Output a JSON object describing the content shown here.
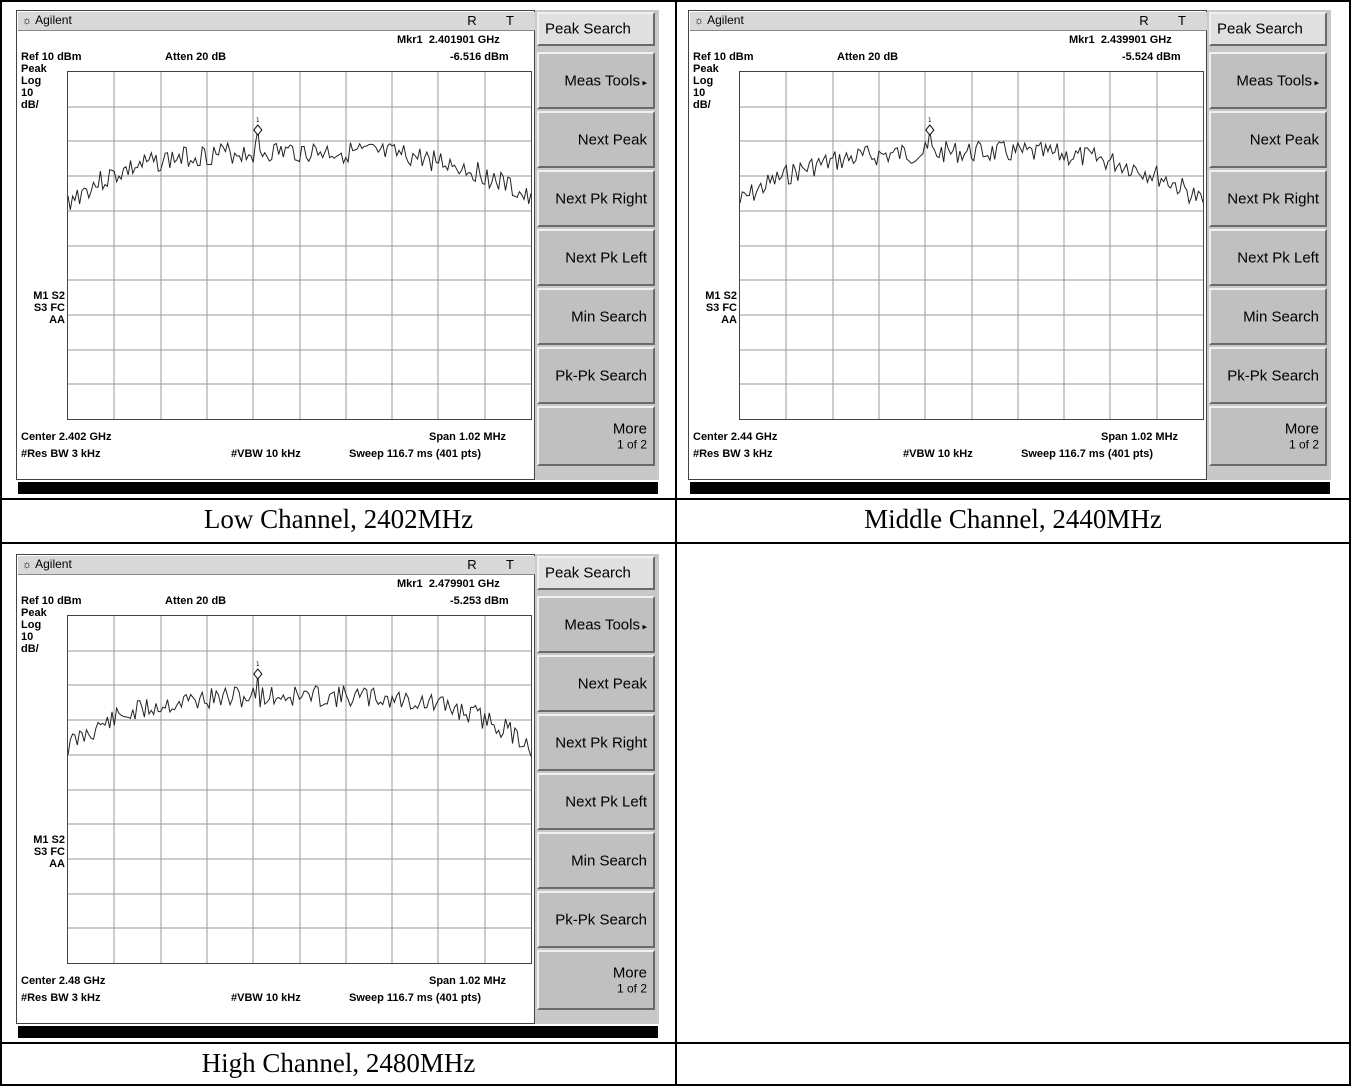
{
  "captions": [
    "Low Channel, 2402MHz",
    "Middle Channel, 2440MHz",
    "High Channel, 2480MHz"
  ],
  "analyzers": [
    {
      "brand": "Agilent",
      "rt": "R T",
      "marker_label": "Mkr1",
      "marker_freq": "2.401901 GHz",
      "marker_level": "-6.516 dBm",
      "ref": "Ref 10 dBm",
      "atten": "Atten 20 dB",
      "mode_lines": [
        "Peak",
        "Log",
        "10",
        "dB/"
      ],
      "status_lines": [
        "M1  S2",
        "S3  FC",
        "AA"
      ],
      "center": "Center 2.402 GHz",
      "span": "Span 1.02 MHz",
      "rbw": "#Res BW 3 kHz",
      "vbw": "#VBW 10 kHz",
      "sweep": "Sweep 116.7 ms (401 pts)",
      "softkeys": [
        "Peak Search",
        "Meas Tools",
        "Next Peak",
        "Next Pk Right",
        "Next Pk Left",
        "Min Search",
        "Pk-Pk Search",
        "More"
      ],
      "more_sub": "1 of 2",
      "trace_seed": 3
    },
    {
      "brand": "Agilent",
      "rt": "R T",
      "marker_label": "Mkr1",
      "marker_freq": "2.439901 GHz",
      "marker_level": "-5.524 dBm",
      "ref": "Ref 10 dBm",
      "atten": "Atten 20 dB",
      "mode_lines": [
        "Peak",
        "Log",
        "10",
        "dB/"
      ],
      "status_lines": [
        "M1  S2",
        "S3  FC",
        "AA"
      ],
      "center": "Center 2.44 GHz",
      "span": "Span 1.02 MHz",
      "rbw": "#Res BW 3 kHz",
      "vbw": "#VBW 10 kHz",
      "sweep": "Sweep 116.7 ms (401 pts)",
      "softkeys": [
        "Peak Search",
        "Meas Tools",
        "Next Peak",
        "Next Pk Right",
        "Next Pk Left",
        "Min Search",
        "Pk-Pk Search",
        "More"
      ],
      "more_sub": "1 of 2",
      "trace_seed": 7
    },
    {
      "brand": "Agilent",
      "rt": "R T",
      "marker_label": "Mkr1",
      "marker_freq": "2.479901 GHz",
      "marker_level": "-5.253 dBm",
      "ref": "Ref 10 dBm",
      "atten": "Atten 20 dB",
      "mode_lines": [
        "Peak",
        "Log",
        "10",
        "dB/"
      ],
      "status_lines": [
        "M1  S2",
        "S3  FC",
        "AA"
      ],
      "center": "Center 2.48 GHz",
      "span": "Span 1.02 MHz",
      "rbw": "#Res BW 3 kHz",
      "vbw": "#VBW 10 kHz",
      "sweep": "Sweep 116.7 ms (401 pts)",
      "softkeys": [
        "Peak Search",
        "Meas Tools",
        "Next Peak",
        "Next Pk Right",
        "Next Pk Left",
        "Min Search",
        "Pk-Pk Search",
        "More"
      ],
      "more_sub": "1 of 2",
      "trace_seed": 11
    }
  ]
}
